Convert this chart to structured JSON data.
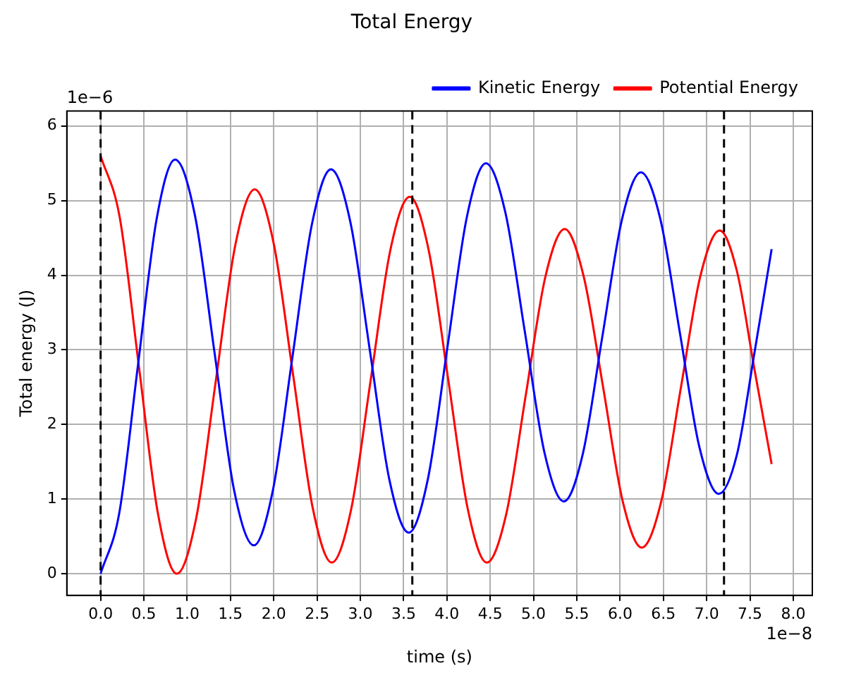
{
  "chart_data": {
    "type": "line",
    "title": "Total Energy",
    "xlabel": "time (s)",
    "ylabel": "Total energy (J)",
    "annotations": [
      "1e−6",
      "1e−8"
    ],
    "xlim": [
      -0.39,
      8.22
    ],
    "ylim": [
      -0.29,
      6.2
    ],
    "xticks": [
      {
        "value": 0,
        "label": "0.0"
      },
      {
        "value": 0.5,
        "label": "0.5"
      },
      {
        "value": 1,
        "label": "1.0"
      },
      {
        "value": 1.5,
        "label": "1.5"
      },
      {
        "value": 2,
        "label": "2.0"
      },
      {
        "value": 2.5,
        "label": "2.5"
      },
      {
        "value": 3,
        "label": "3.0"
      },
      {
        "value": 3.5,
        "label": "3.5"
      },
      {
        "value": 4,
        "label": "4.0"
      },
      {
        "value": 4.5,
        "label": "4.5"
      },
      {
        "value": 5,
        "label": "5.0"
      },
      {
        "value": 5.5,
        "label": "5.5"
      },
      {
        "value": 6,
        "label": "6.0"
      },
      {
        "value": 6.5,
        "label": "6.5"
      },
      {
        "value": 7,
        "label": "7.0"
      },
      {
        "value": 7.5,
        "label": "7.5"
      },
      {
        "value": 8,
        "label": "8.0"
      }
    ],
    "yticks": [
      0,
      1,
      2,
      3,
      4,
      5,
      6
    ],
    "grid": true,
    "legend": "top right",
    "marker": "none",
    "line_style": "solid",
    "ref_lines": [
      {
        "axis": "x",
        "value": 0,
        "color": "#000000",
        "line_style": "dashed"
      },
      {
        "axis": "x",
        "value": 3.6,
        "color": "#000000",
        "line_style": "dashed"
      },
      {
        "axis": "x",
        "value": 7.2,
        "color": "#000000",
        "line_style": "dashed"
      }
    ],
    "series": [
      {
        "name": "Kinetic Energy",
        "color": "#0000ff",
        "x": [
          0,
          0.215,
          0.43,
          0.645,
          0.86,
          1.09,
          1.315,
          1.54,
          1.77,
          1.99,
          2.215,
          2.44,
          2.66,
          2.885,
          3.11,
          3.335,
          3.56,
          3.78,
          4.005,
          4.23,
          4.45,
          4.675,
          4.9,
          5.125,
          5.35,
          5.57,
          5.795,
          6.02,
          6.24,
          6.465,
          6.69,
          6.915,
          7.14,
          7.35,
          7.55,
          7.75
        ],
        "values": [
          0,
          0.81,
          2.78,
          4.74,
          5.55,
          4.8,
          2.97,
          1.13,
          0.38,
          1.12,
          2.9,
          4.68,
          5.42,
          4.71,
          2.99,
          1.26,
          0.55,
          1.27,
          3.03,
          4.78,
          5.5,
          4.84,
          3.24,
          1.63,
          0.97,
          1.61,
          3.18,
          4.74,
          5.38,
          4.75,
          3.23,
          1.7,
          1.07,
          1.6,
          2.95,
          4.35
        ]
      },
      {
        "name": "Potential Energy",
        "color": "#ff0000",
        "x": [
          0,
          0.22,
          0.44,
          0.66,
          0.88,
          1.105,
          1.33,
          1.555,
          1.78,
          2.0,
          2.225,
          2.45,
          2.67,
          2.895,
          3.12,
          3.345,
          3.57,
          3.79,
          4.015,
          4.24,
          4.46,
          4.685,
          4.91,
          5.135,
          5.36,
          5.58,
          5.805,
          6.03,
          6.25,
          6.475,
          6.7,
          6.925,
          7.15,
          7.35,
          7.55,
          7.75
        ],
        "values": [
          5.6,
          4.78,
          2.8,
          0.82,
          0,
          0.75,
          2.58,
          4.4,
          5.15,
          4.42,
          2.65,
          0.88,
          0.15,
          0.87,
          2.6,
          4.33,
          5.05,
          4.33,
          2.6,
          0.87,
          0.15,
          0.8,
          2.39,
          3.97,
          4.62,
          3.98,
          2.49,
          0.97,
          0.35,
          0.97,
          2.48,
          3.98,
          4.6,
          4.05,
          2.75,
          1.47
        ]
      }
    ]
  }
}
